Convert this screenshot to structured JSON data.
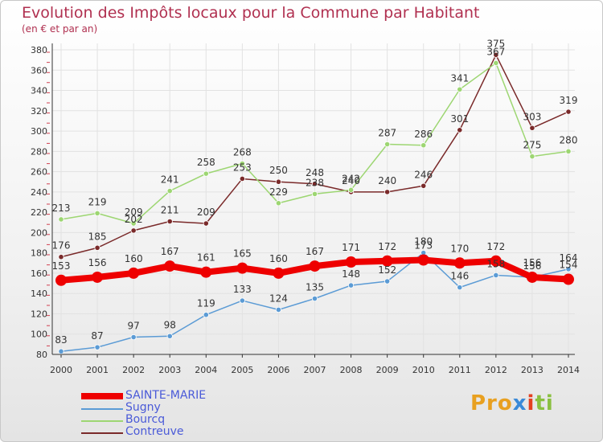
{
  "title": "Evolution des Impôts locaux pour la Commune par Habitant",
  "subtitle": "(en € et par an)",
  "logo": {
    "p1": "Pro",
    "p2": "x",
    "p3": "i",
    "p4": "ti"
  },
  "chart_data": {
    "type": "line",
    "x": [
      "2000",
      "2001",
      "2002",
      "2003",
      "2004",
      "2005",
      "2006",
      "2007",
      "2008",
      "2009",
      "2010",
      "2011",
      "2012",
      "2013",
      "2014"
    ],
    "ylim": [
      80,
      380
    ],
    "yticks": [
      80,
      100,
      120,
      140,
      160,
      180,
      200,
      220,
      240,
      260,
      280,
      300,
      320,
      340,
      360,
      380
    ],
    "grid": true,
    "legend_position": "bottom-left",
    "series": [
      {
        "name": "SAINTE-MARIE",
        "color": "#ee0000",
        "values": [
          153,
          156,
          160,
          167,
          161,
          165,
          160,
          167,
          171,
          172,
          173,
          170,
          172,
          156,
          154
        ]
      },
      {
        "name": "Sugny",
        "color": "#5b9bd5",
        "values": [
          83,
          87,
          97,
          98,
          119,
          133,
          124,
          135,
          148,
          152,
          180,
          146,
          158,
          156,
          164
        ]
      },
      {
        "name": "Bourcq",
        "color": "#9dd672",
        "values": [
          213,
          219,
          209,
          241,
          258,
          268,
          229,
          238,
          242,
          287,
          286,
          341,
          367,
          275,
          280
        ]
      },
      {
        "name": "Contreuve",
        "color": "#7a2a2a",
        "values": [
          176,
          185,
          202,
          211,
          209,
          253,
          250,
          248,
          240,
          240,
          246,
          301,
          375,
          303,
          319
        ]
      }
    ]
  }
}
